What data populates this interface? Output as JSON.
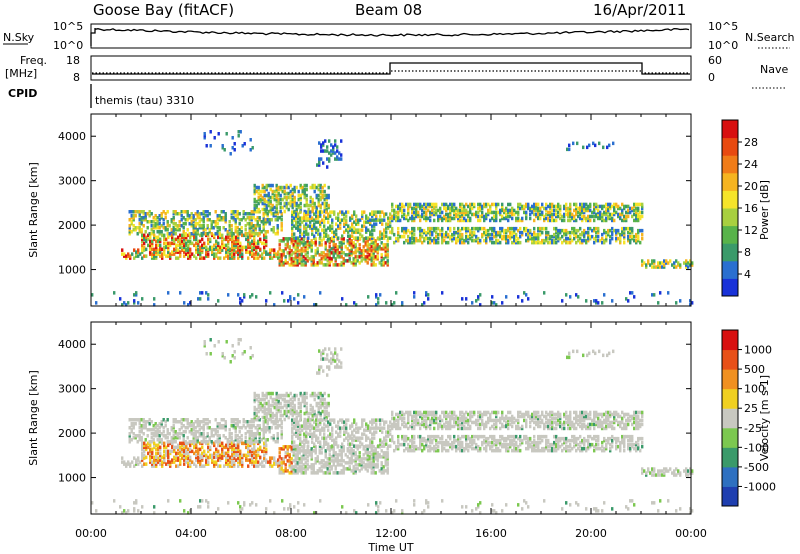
{
  "header": {
    "station": "Goose Bay (fitACF)",
    "beam": "Beam 08",
    "date": "16/Apr/2011"
  },
  "top_panels": {
    "noise_label_left": "N.Sky",
    "noise_label_right": "N.Search",
    "noise_ticks_left": [
      "10^5",
      "10^0"
    ],
    "noise_ticks_right": [
      "10^5",
      "10^0"
    ],
    "freq_label_line1": "Freq.",
    "freq_label_line2": "[MHz]",
    "freq_ticks": [
      "18",
      "8"
    ],
    "nave_label": "Nave",
    "nave_ticks": [
      "60",
      "0"
    ],
    "cpid_label": "CPID",
    "cpid_text": "themis (tau) 3310"
  },
  "chart_data": [
    {
      "type": "heatmap",
      "name": "power",
      "ylabel": "Slant Range [km]",
      "xlabel": "Time UT",
      "x_ticks": [
        "00:00",
        "04:00",
        "08:00",
        "12:00",
        "16:00",
        "20:00",
        "00:00"
      ],
      "x_range_hours": [
        0,
        24
      ],
      "y_ticks": [
        1000,
        2000,
        3000,
        4000
      ],
      "ylim": [
        180,
        4500
      ],
      "colorbar_label": "Power [dB]",
      "colorbar_ticks": [
        4,
        8,
        12,
        16,
        20,
        24,
        28
      ],
      "colorbar_range": [
        2,
        30
      ],
      "colorbar_colors": [
        "#1932d8",
        "#2a6fd0",
        "#3a9a6a",
        "#58b34a",
        "#a8d040",
        "#f5e42a",
        "#f5b420",
        "#f07c18",
        "#e84a10",
        "#d81010"
      ]
    },
    {
      "type": "heatmap",
      "name": "velocity",
      "ylabel": "Slant Range [km]",
      "xlabel": "Time UT",
      "x_ticks": [
        "00:00",
        "04:00",
        "08:00",
        "12:00",
        "16:00",
        "20:00",
        "00:00"
      ],
      "x_range_hours": [
        0,
        24
      ],
      "y_ticks": [
        1000,
        2000,
        3000,
        4000
      ],
      "ylim": [
        180,
        4500
      ],
      "colorbar_label": "Velocity [m s-1]",
      "colorbar_ticks": [
        "1000",
        "500",
        "100",
        "25",
        "-25",
        "-100",
        "-500",
        "-1000"
      ],
      "colorbar_colors": [
        "#1f3fb0",
        "#2e70c0",
        "#3a9a6a",
        "#7cc850",
        "#c8c8c0",
        "#f0d020",
        "#f09020",
        "#e85018",
        "#d81010"
      ]
    }
  ]
}
